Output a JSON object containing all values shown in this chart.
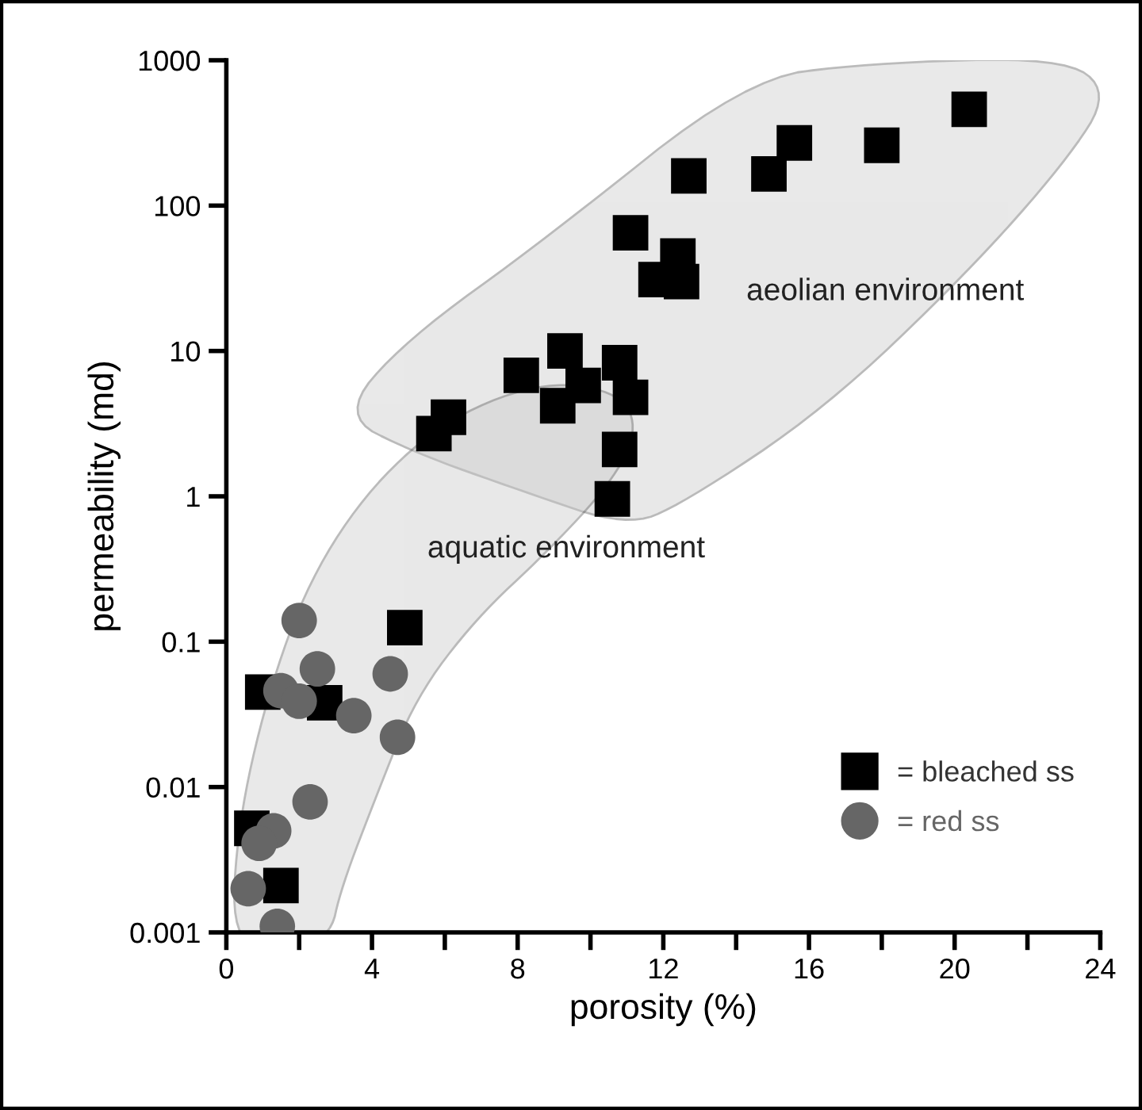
{
  "chart_data": {
    "type": "scatter",
    "xlabel": "porosity (%)",
    "ylabel": "permeability (md)",
    "log": "y",
    "xlim": [
      0,
      24
    ],
    "xticks": [
      0,
      {
        "value": 2,
        "label": null
      },
      4,
      {
        "value": 6,
        "label": null
      },
      8,
      {
        "value": 10,
        "label": null
      },
      12,
      {
        "value": 14,
        "label": null
      },
      16,
      {
        "value": 18,
        "label": null
      },
      20,
      {
        "value": 22,
        "label": null
      },
      24
    ],
    "ylim": [
      0.001,
      1000
    ],
    "yticks": [
      0.001,
      0.01,
      0.1,
      1,
      10,
      100,
      1000
    ],
    "grid": false,
    "legend": "bottom right",
    "annotations": [
      "aeolian environment",
      "aquatic environment"
    ],
    "series": [
      {
        "name": "= bleached ss",
        "color": "#000000",
        "marker": "square",
        "x": [
          20.4,
          15.6,
          18.0,
          14.9,
          12.7,
          11.1,
          12.4,
          11.8,
          12.5,
          9.3,
          10.8,
          8.1,
          9.8,
          11.1,
          9.1,
          6.1,
          5.7,
          10.8,
          10.6,
          4.9,
          1.0,
          2.7,
          0.7,
          1.5
        ],
        "values": [
          460,
          270,
          260,
          165,
          160,
          65,
          45,
          31,
          30,
          10,
          8.3,
          6.8,
          5.8,
          4.8,
          4.2,
          3.5,
          2.7,
          2.1,
          0.96,
          0.125,
          0.045,
          0.038,
          0.0052,
          0.0021
        ]
      },
      {
        "name": "= red ss",
        "color": "#666666",
        "marker": "circle",
        "x": [
          2.0,
          2.5,
          4.5,
          1.5,
          2.0,
          3.5,
          4.7,
          2.3,
          1.3,
          0.9,
          0.6,
          1.4
        ],
        "values": [
          0.14,
          0.065,
          0.06,
          0.046,
          0.039,
          0.031,
          0.022,
          0.0079,
          0.005,
          0.0041,
          0.002,
          0.0011
        ]
      }
    ]
  }
}
